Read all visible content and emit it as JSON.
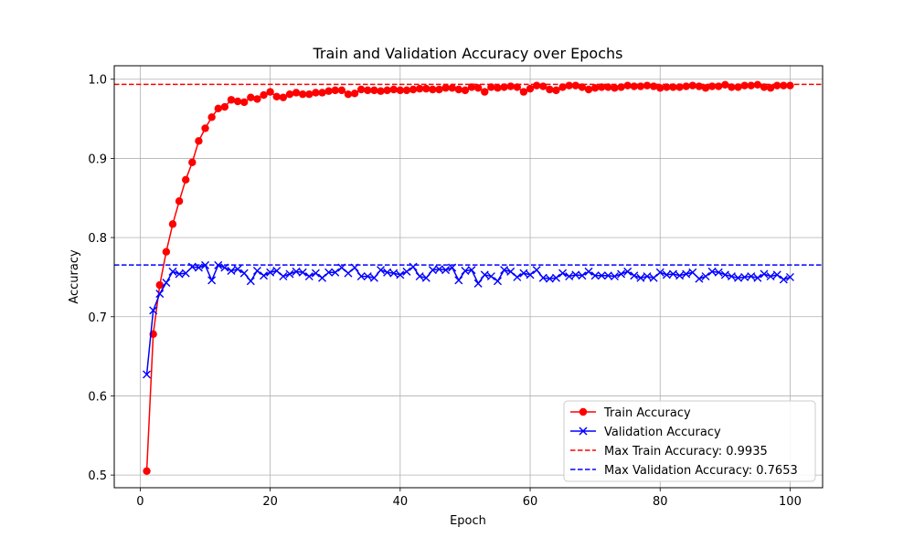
{
  "chart_data": {
    "type": "line",
    "title": "Train and Validation Accuracy over Epochs",
    "xlabel": "Epoch",
    "ylabel": "Accuracy",
    "xlim": [
      -4,
      105
    ],
    "ylim": [
      0.484,
      1.017
    ],
    "xticks": [
      0,
      20,
      40,
      60,
      80,
      100
    ],
    "yticks": [
      0.5,
      0.6,
      0.7,
      0.8,
      0.9,
      1.0
    ],
    "xtick_labels": [
      "0",
      "20",
      "40",
      "60",
      "80",
      "100"
    ],
    "ytick_labels": [
      "0.5",
      "0.6",
      "0.7",
      "0.8",
      "0.9",
      "1.0"
    ],
    "grid": true,
    "legend_position": "lower-right",
    "x": [
      1,
      2,
      3,
      4,
      5,
      6,
      7,
      8,
      9,
      10,
      11,
      12,
      13,
      14,
      15,
      16,
      17,
      18,
      19,
      20,
      21,
      22,
      23,
      24,
      25,
      26,
      27,
      28,
      29,
      30,
      31,
      32,
      33,
      34,
      35,
      36,
      37,
      38,
      39,
      40,
      41,
      42,
      43,
      44,
      45,
      46,
      47,
      48,
      49,
      50,
      51,
      52,
      53,
      54,
      55,
      56,
      57,
      58,
      59,
      60,
      61,
      62,
      63,
      64,
      65,
      66,
      67,
      68,
      69,
      70,
      71,
      72,
      73,
      74,
      75,
      76,
      77,
      78,
      79,
      80,
      81,
      82,
      83,
      84,
      85,
      86,
      87,
      88,
      89,
      90,
      91,
      92,
      93,
      94,
      95,
      96,
      97,
      98,
      99,
      100
    ],
    "series": [
      {
        "name": "Train Accuracy",
        "color": "#ff0000",
        "marker": "circle",
        "values": [
          0.505,
          0.678,
          0.74,
          0.782,
          0.817,
          0.846,
          0.873,
          0.895,
          0.922,
          0.938,
          0.952,
          0.963,
          0.965,
          0.974,
          0.972,
          0.971,
          0.977,
          0.975,
          0.98,
          0.984,
          0.978,
          0.977,
          0.981,
          0.983,
          0.981,
          0.981,
          0.983,
          0.983,
          0.985,
          0.986,
          0.986,
          0.981,
          0.982,
          0.987,
          0.986,
          0.986,
          0.985,
          0.986,
          0.987,
          0.986,
          0.986,
          0.987,
          0.988,
          0.988,
          0.987,
          0.987,
          0.989,
          0.989,
          0.987,
          0.986,
          0.99,
          0.989,
          0.984,
          0.99,
          0.989,
          0.99,
          0.991,
          0.99,
          0.984,
          0.988,
          0.992,
          0.991,
          0.987,
          0.986,
          0.99,
          0.992,
          0.992,
          0.99,
          0.987,
          0.989,
          0.99,
          0.99,
          0.989,
          0.99,
          0.992,
          0.991,
          0.991,
          0.992,
          0.991,
          0.989,
          0.99,
          0.99,
          0.99,
          0.991,
          0.992,
          0.991,
          0.989,
          0.991,
          0.991,
          0.993,
          0.99,
          0.99,
          0.992,
          0.992,
          0.993,
          0.99,
          0.989,
          0.992,
          0.992,
          0.992
        ]
      },
      {
        "name": "Validation Accuracy",
        "color": "#0000ff",
        "marker": "x",
        "values": [
          0.627,
          0.708,
          0.729,
          0.743,
          0.757,
          0.754,
          0.755,
          0.763,
          0.762,
          0.765,
          0.746,
          0.765,
          0.762,
          0.758,
          0.76,
          0.755,
          0.745,
          0.758,
          0.752,
          0.756,
          0.758,
          0.751,
          0.754,
          0.757,
          0.756,
          0.751,
          0.755,
          0.749,
          0.756,
          0.756,
          0.762,
          0.755,
          0.762,
          0.751,
          0.751,
          0.749,
          0.759,
          0.756,
          0.755,
          0.753,
          0.757,
          0.763,
          0.751,
          0.749,
          0.759,
          0.76,
          0.759,
          0.762,
          0.746,
          0.758,
          0.759,
          0.742,
          0.753,
          0.751,
          0.745,
          0.759,
          0.757,
          0.75,
          0.755,
          0.753,
          0.759,
          0.749,
          0.748,
          0.749,
          0.755,
          0.751,
          0.753,
          0.752,
          0.757,
          0.752,
          0.752,
          0.752,
          0.751,
          0.754,
          0.757,
          0.752,
          0.749,
          0.751,
          0.749,
          0.756,
          0.753,
          0.754,
          0.752,
          0.754,
          0.756,
          0.748,
          0.751,
          0.757,
          0.756,
          0.753,
          0.751,
          0.749,
          0.75,
          0.751,
          0.749,
          0.754,
          0.751,
          0.753,
          0.747,
          0.75
        ]
      }
    ],
    "reference_lines": [
      {
        "name": "Max Train Accuracy: 0.9935",
        "y": 0.9935,
        "color": "#ff0000",
        "style": "dashed"
      },
      {
        "name": "Max Validation Accuracy: 0.7653",
        "y": 0.7653,
        "color": "#0000ff",
        "style": "dashed"
      }
    ]
  }
}
